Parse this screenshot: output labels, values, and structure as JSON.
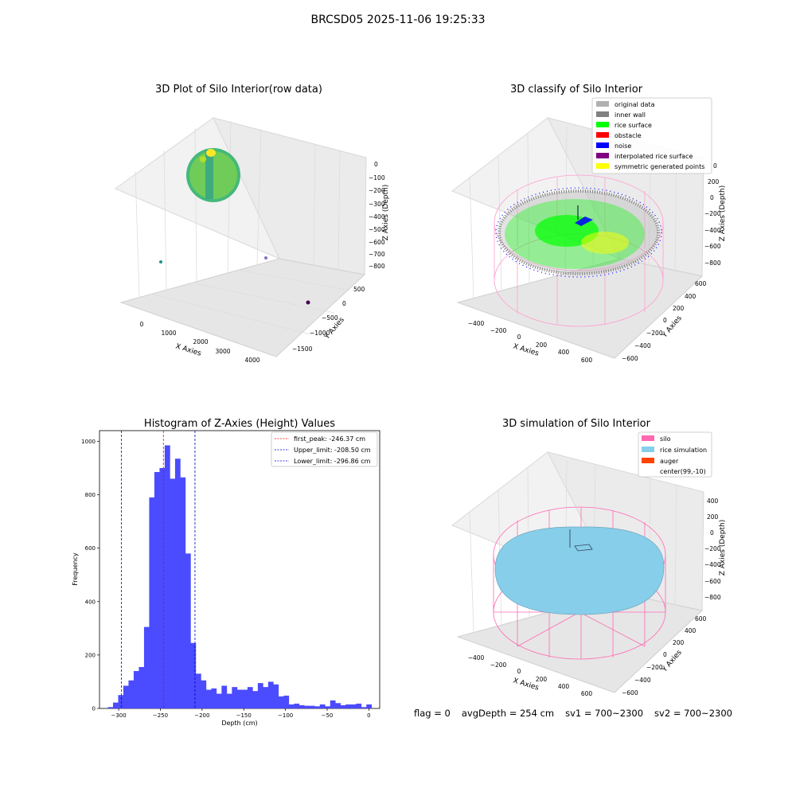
{
  "suptitle": "BRCSD05 2025-11-06 19:25:33",
  "colors": {
    "hist_bar": "#4b4bff",
    "first_peak_line": "#ff0000",
    "limit_line": "#0000cc",
    "silo": "#ff69b4",
    "rice_simulation": "#87ceeb",
    "auger": "#ff4500",
    "rice_surface": "#00ff00",
    "noise": "#0000ff",
    "original_data": "#b0b0b0",
    "inner_wall": "#808080",
    "obstacle": "#ff0000",
    "interpolated_rice_surface": "#800080",
    "symmetric_generated_points": "#ffff00"
  },
  "panel_raw": {
    "title": "3D Plot of Silo Interior(row data)",
    "xlabel": "X Axies",
    "ylabel": "Y Axies",
    "zlabel": "Z Axies (Depth)",
    "xticks": [
      "0",
      "1000",
      "2000",
      "3000",
      "4000"
    ],
    "yticks": [
      "500",
      "0",
      "−500",
      "−1000",
      "−1500"
    ],
    "zticks": [
      "0",
      "−100",
      "−200",
      "−300",
      "−400",
      "−500",
      "−600",
      "−700",
      "−800"
    ]
  },
  "panel_classify": {
    "title": "3D classify of Silo Interior",
    "xlabel": "X Axies",
    "ylabel": "Y Axies",
    "zlabel": "Z Axies (Depth)",
    "xticks": [
      "−400",
      "−200",
      "0",
      "200",
      "400",
      "600"
    ],
    "yticks": [
      "600",
      "400",
      "200",
      "0",
      "−200",
      "−400",
      "−600"
    ],
    "zticks": [
      "200",
      "0",
      "−200",
      "−400",
      "−600",
      "−800"
    ],
    "ztick_top_partial": "0",
    "legend": [
      {
        "label": "original data",
        "color": "#b0b0b0"
      },
      {
        "label": "inner wall",
        "color": "#808080"
      },
      {
        "label": "rice surface",
        "color": "#00ff00"
      },
      {
        "label": "obstacle",
        "color": "#ff0000"
      },
      {
        "label": "noise",
        "color": "#0000ff"
      },
      {
        "label": "interpolated rice surface",
        "color": "#800080"
      },
      {
        "label": "symmetric generated points",
        "color": "#ffff00"
      }
    ]
  },
  "panel_sim": {
    "title": "3D simulation of Silo Interior",
    "xlabel": "X Axies",
    "ylabel": "Y Axies",
    "zlabel": "Z Axies (Depth)",
    "xticks": [
      "−400",
      "−200",
      "0",
      "200",
      "400",
      "600"
    ],
    "yticks": [
      "600",
      "400",
      "200",
      "0",
      "−200",
      "−400",
      "−600"
    ],
    "zticks": [
      "400",
      "200",
      "0",
      "−200",
      "−400",
      "−600",
      "−800"
    ],
    "legend": [
      {
        "label": "silo",
        "color": "#ff69b4"
      },
      {
        "label": "rice simulation",
        "color": "#87ceeb"
      },
      {
        "label": "auger",
        "color": "#ff4500"
      },
      {
        "label": "center(99,-10)",
        "color": ""
      }
    ]
  },
  "footer": {
    "flag": "flag = 0",
    "avg_depth": "avgDepth = 254 cm",
    "sv1": "sv1 = 700~2300",
    "sv2": "sv2 = 700~2300"
  },
  "chart_data": [
    {
      "type": "bar",
      "title": "Histogram of Z-Axies (Height) Values",
      "xlabel": "Depth (cm)",
      "ylabel": "Frequency",
      "xlim": [
        -323,
        13
      ],
      "ylim": [
        0,
        1040
      ],
      "xticks": [
        "−300",
        "−250",
        "−200",
        "−150",
        "−100",
        "−50",
        "0"
      ],
      "xtick_values": [
        -300,
        -250,
        -200,
        -150,
        -100,
        -50,
        0
      ],
      "yticks": [
        "0",
        "200",
        "400",
        "600",
        "800",
        "1000"
      ],
      "ytick_values": [
        0,
        200,
        400,
        600,
        800,
        1000
      ],
      "bin_start": -313,
      "bin_width": 6.2,
      "values": [
        5,
        22,
        50,
        85,
        105,
        140,
        155,
        305,
        790,
        885,
        900,
        985,
        860,
        935,
        865,
        580,
        245,
        130,
        105,
        70,
        75,
        55,
        85,
        55,
        80,
        70,
        70,
        80,
        65,
        95,
        80,
        100,
        90,
        45,
        48,
        15,
        18,
        12,
        10,
        10,
        8,
        15,
        8,
        30,
        20,
        12,
        15,
        15,
        18,
        5,
        15
      ],
      "vlines": [
        {
          "x": -246.37,
          "color": "#ff0000",
          "label": "first_peak: -246.37 cm"
        },
        {
          "x": -208.5,
          "color": "#0000cc",
          "label": "Upper_limit: -208.50 cm"
        },
        {
          "x": -296.86,
          "color": "#0000cc",
          "label": "Lower_limit: -296.86 cm"
        }
      ],
      "legend_position": "top-right",
      "grid": false
    }
  ]
}
